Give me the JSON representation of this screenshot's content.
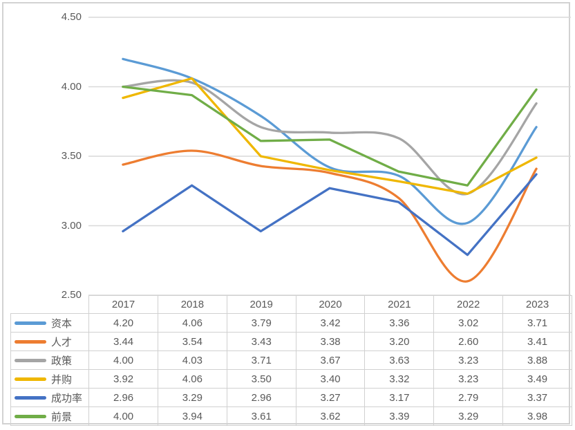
{
  "chart_data": {
    "type": "line",
    "title": "",
    "x": [
      "2017",
      "2018",
      "2019",
      "2020",
      "2021",
      "2022",
      "2023"
    ],
    "series": [
      {
        "key": "capital",
        "name": "资本",
        "color": "#5B9BD5",
        "smooth": true,
        "values": [
          4.2,
          4.06,
          3.79,
          3.42,
          3.36,
          3.02,
          3.71
        ]
      },
      {
        "key": "talent",
        "name": "人才",
        "color": "#ED7D31",
        "smooth": true,
        "values": [
          3.44,
          3.54,
          3.43,
          3.38,
          3.2,
          2.6,
          3.41
        ]
      },
      {
        "key": "policy",
        "name": "政策",
        "color": "#A5A5A5",
        "smooth": true,
        "values": [
          4.0,
          4.03,
          3.71,
          3.67,
          3.63,
          3.23,
          3.88
        ]
      },
      {
        "key": "mna",
        "name": "并购",
        "color": "#EFB700",
        "smooth": false,
        "values": [
          3.92,
          4.06,
          3.5,
          3.4,
          3.32,
          3.23,
          3.49
        ]
      },
      {
        "key": "success-rate",
        "name": "成功率",
        "color": "#4472C4",
        "smooth": false,
        "values": [
          2.96,
          3.29,
          2.96,
          3.27,
          3.17,
          2.79,
          3.37
        ]
      },
      {
        "key": "prospect",
        "name": "前景",
        "color": "#70AD47",
        "smooth": false,
        "values": [
          4.0,
          3.94,
          3.61,
          3.62,
          3.39,
          3.29,
          3.98
        ]
      }
    ],
    "y_axis": {
      "min": 2.5,
      "max": 4.5,
      "step": 0.5,
      "tick_labels": [
        "4.50",
        "4.00",
        "3.50",
        "3.00",
        "2.50"
      ]
    },
    "grid": "horizontal",
    "legend_position": "data-table-left",
    "value_decimals": 2
  },
  "colors": {
    "gridline": "#d9d9d9",
    "table_border": "#d0d0d0",
    "text": "#595959",
    "frame_border": "#d2d2d2",
    "background": "#ffffff"
  }
}
